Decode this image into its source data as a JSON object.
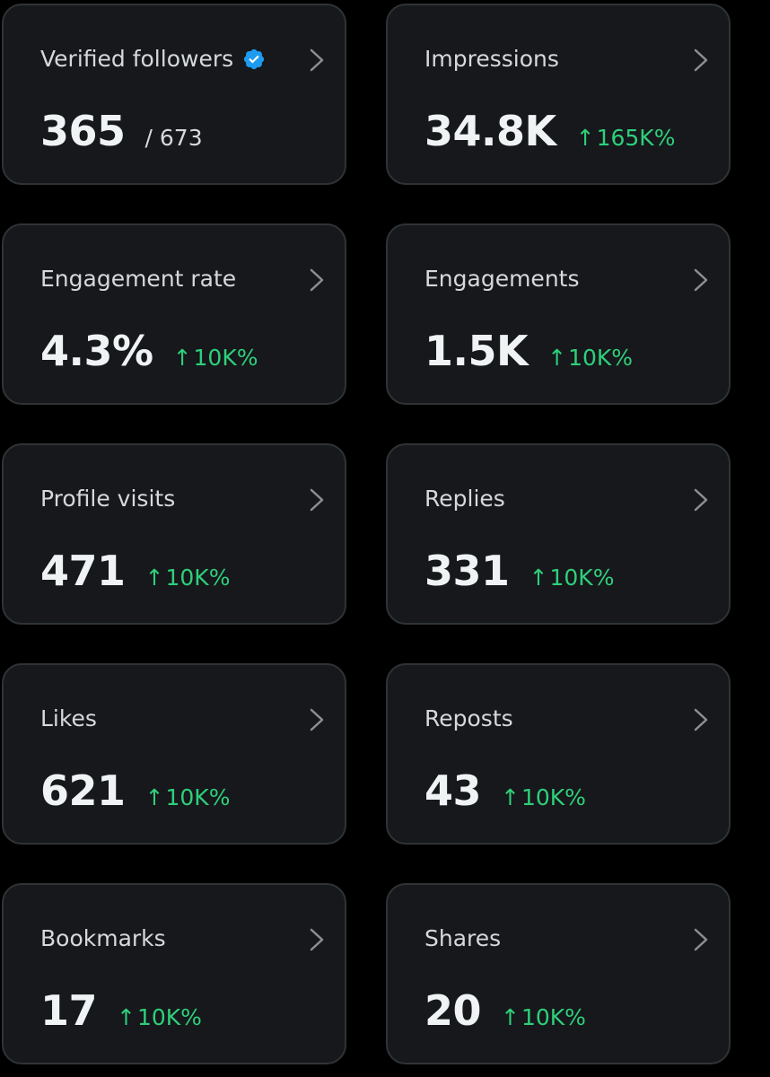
{
  "colors": {
    "background": "#000000",
    "card": "#16181c",
    "card_border": "#2f3336",
    "label": "#d6d9db",
    "value": "#eff3f4",
    "positive_change": "#2fcf7a",
    "verified_badge": "#1d9bf0"
  },
  "icons": {
    "verified": "verified-badge-icon",
    "chevron": "chevron-right-icon",
    "arrow": "arrow-up-icon"
  },
  "cards": [
    {
      "label": "Verified followers",
      "value": "365",
      "total": "/ 673"
    },
    {
      "label": "Impressions",
      "value": "34.8K",
      "arrow": "↑",
      "change": "165K%"
    },
    {
      "label": "Engagement rate",
      "value": "4.3%",
      "arrow": "↑",
      "change": "10K%"
    },
    {
      "label": "Engagements",
      "value": "1.5K",
      "arrow": "↑",
      "change": "10K%"
    },
    {
      "label": "Profile visits",
      "value": "471",
      "arrow": "↑",
      "change": "10K%"
    },
    {
      "label": "Replies",
      "value": "331",
      "arrow": "↑",
      "change": "10K%"
    },
    {
      "label": "Likes",
      "value": "621",
      "arrow": "↑",
      "change": "10K%"
    },
    {
      "label": "Reposts",
      "value": "43",
      "arrow": "↑",
      "change": "10K%"
    },
    {
      "label": "Bookmarks",
      "value": "17",
      "arrow": "↑",
      "change": "10K%"
    },
    {
      "label": "Shares",
      "value": "20",
      "arrow": "↑",
      "change": "10K%"
    }
  ]
}
